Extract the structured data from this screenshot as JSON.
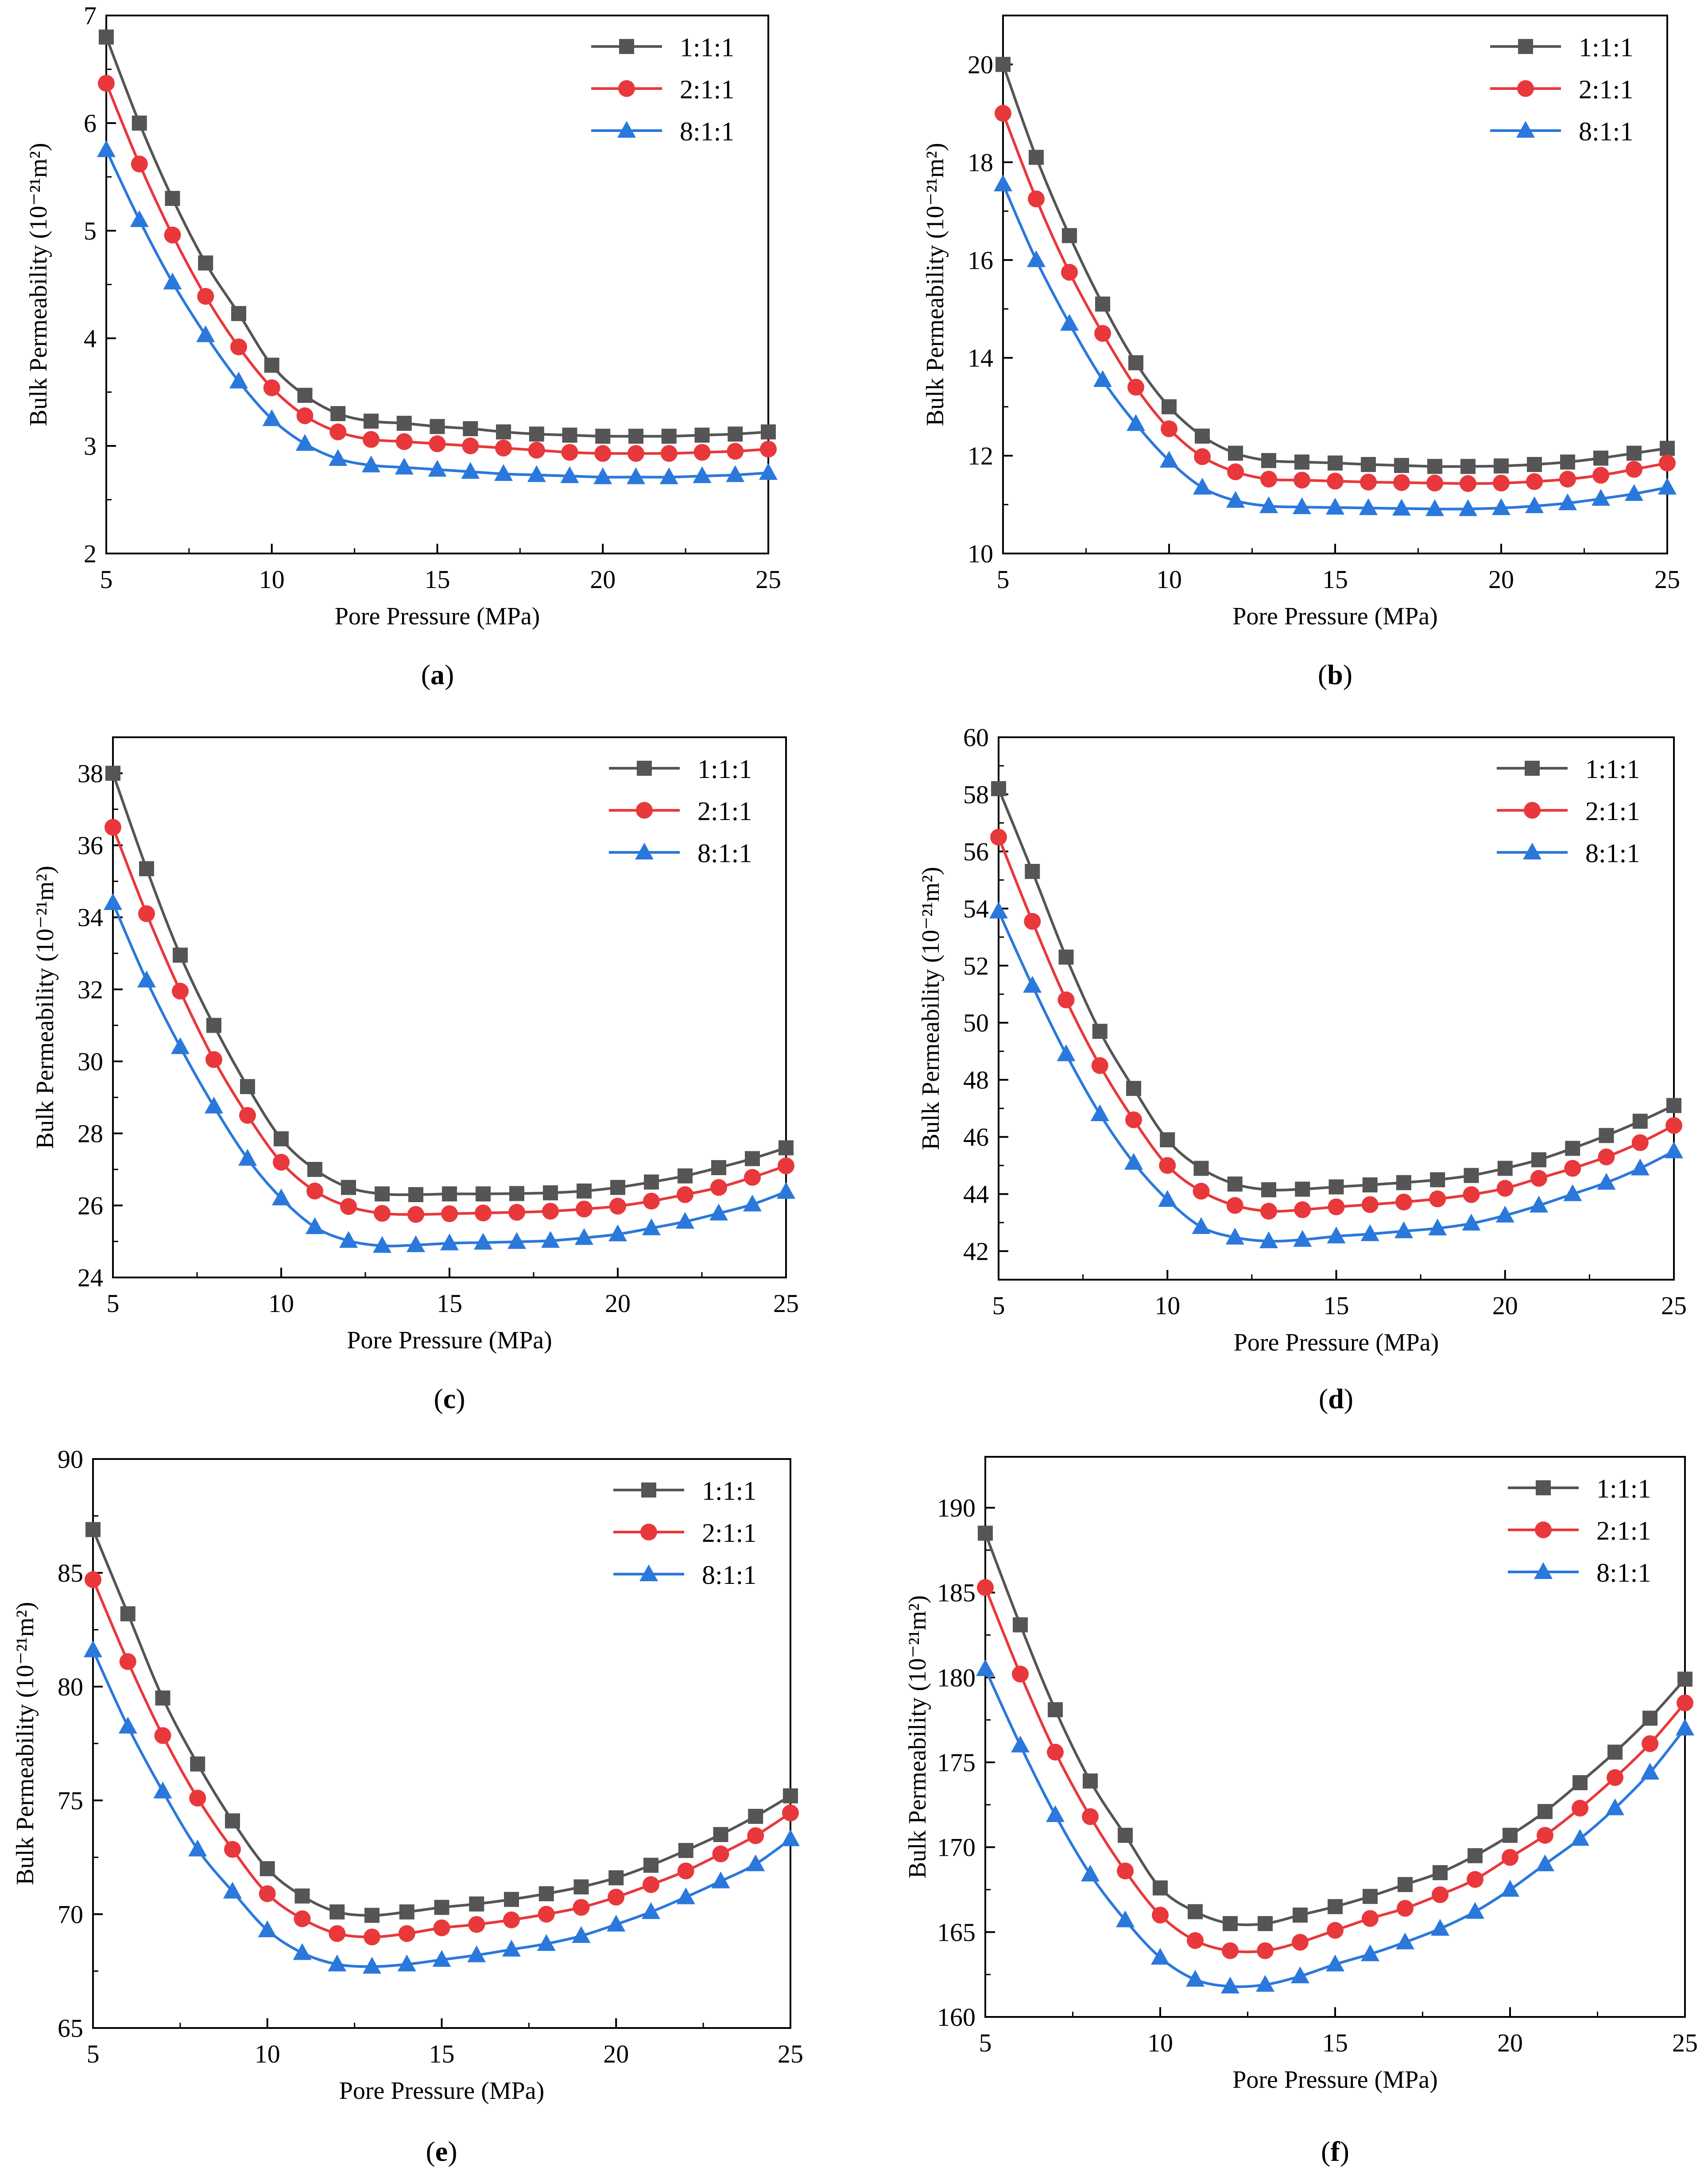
{
  "figure_labels": [
    "a",
    "b",
    "c",
    "d",
    "e",
    "f"
  ],
  "colors": {
    "s1": "#555555",
    "s2": "#e8383b",
    "s3": "#2a78dc"
  },
  "chart_data": [
    {
      "id": "a",
      "type": "line",
      "label": "a",
      "xlabel": "Pore Pressure (MPa)",
      "ylabel": "Bulk Permeability (10⁻²¹m²)",
      "xlim": [
        5,
        25
      ],
      "ylim": [
        2,
        7
      ],
      "xticks": [
        5,
        10,
        15,
        20,
        25
      ],
      "yticks": [
        2,
        3,
        4,
        5,
        6,
        7
      ],
      "x": [
        5,
        6,
        7,
        8,
        9,
        10,
        11,
        12,
        13,
        14,
        15,
        16,
        17,
        18,
        19,
        20,
        21,
        22,
        23,
        24,
        25
      ],
      "series": [
        {
          "name": "1:1:1",
          "values": [
            6.8,
            6.0,
            5.3,
            4.7,
            4.23,
            3.75,
            3.47,
            3.3,
            3.23,
            3.21,
            3.18,
            3.16,
            3.13,
            3.11,
            3.1,
            3.09,
            3.09,
            3.09,
            3.1,
            3.11,
            3.13
          ]
        },
        {
          "name": "2:1:1",
          "values": [
            6.37,
            5.62,
            4.96,
            4.39,
            3.92,
            3.54,
            3.28,
            3.13,
            3.06,
            3.04,
            3.02,
            3.0,
            2.98,
            2.96,
            2.94,
            2.93,
            2.93,
            2.93,
            2.94,
            2.95,
            2.97
          ]
        },
        {
          "name": "8:1:1",
          "values": [
            5.75,
            5.1,
            4.52,
            4.03,
            3.6,
            3.25,
            3.02,
            2.88,
            2.82,
            2.8,
            2.78,
            2.76,
            2.74,
            2.73,
            2.72,
            2.71,
            2.71,
            2.71,
            2.72,
            2.73,
            2.75
          ]
        }
      ]
    },
    {
      "id": "b",
      "type": "line",
      "label": "b",
      "xlabel": "Pore Pressure (MPa)",
      "ylabel": "Bulk Permeability (10⁻²¹m²)",
      "xlim": [
        5,
        25
      ],
      "ylim": [
        10,
        21
      ],
      "xticks": [
        5,
        10,
        15,
        20,
        25
      ],
      "yticks": [
        10,
        12,
        14,
        16,
        18,
        20
      ],
      "x": [
        5,
        6,
        7,
        8,
        9,
        10,
        11,
        12,
        13,
        14,
        15,
        16,
        17,
        18,
        19,
        20,
        21,
        22,
        23,
        24,
        25
      ],
      "series": [
        {
          "name": "1:1:1",
          "values": [
            20.0,
            18.1,
            16.5,
            15.1,
            13.9,
            13.0,
            12.4,
            12.05,
            11.9,
            11.87,
            11.85,
            11.82,
            11.8,
            11.78,
            11.78,
            11.79,
            11.82,
            11.87,
            11.95,
            12.05,
            12.15
          ]
        },
        {
          "name": "2:1:1",
          "values": [
            19.0,
            17.25,
            15.75,
            14.5,
            13.4,
            12.55,
            11.98,
            11.67,
            11.52,
            11.5,
            11.48,
            11.46,
            11.45,
            11.44,
            11.43,
            11.44,
            11.47,
            11.52,
            11.6,
            11.72,
            11.85
          ]
        },
        {
          "name": "8:1:1",
          "values": [
            17.55,
            16.0,
            14.7,
            13.55,
            12.65,
            11.9,
            11.35,
            11.08,
            10.97,
            10.95,
            10.94,
            10.93,
            10.92,
            10.91,
            10.91,
            10.93,
            10.97,
            11.03,
            11.12,
            11.22,
            11.35
          ]
        }
      ]
    },
    {
      "id": "c",
      "type": "line",
      "label": "c",
      "xlabel": "Pore Pressure (MPa)",
      "ylabel": "Bulk Permeability (10⁻²¹m²)",
      "xlim": [
        5,
        25
      ],
      "ylim": [
        24,
        39
      ],
      "xticks": [
        5,
        10,
        15,
        20,
        25
      ],
      "yticks": [
        24,
        26,
        28,
        30,
        32,
        34,
        36,
        38
      ],
      "x": [
        5,
        6,
        7,
        8,
        9,
        10,
        11,
        12,
        13,
        14,
        15,
        16,
        17,
        18,
        19,
        20,
        21,
        22,
        23,
        24,
        25
      ],
      "series": [
        {
          "name": "1:1:1",
          "values": [
            38.0,
            35.35,
            32.95,
            31.0,
            29.3,
            27.85,
            27.0,
            26.5,
            26.32,
            26.3,
            26.32,
            26.32,
            26.33,
            26.35,
            26.4,
            26.5,
            26.65,
            26.82,
            27.05,
            27.3,
            27.6
          ]
        },
        {
          "name": "2:1:1",
          "values": [
            36.5,
            34.1,
            31.95,
            30.05,
            28.5,
            27.2,
            26.4,
            25.97,
            25.78,
            25.75,
            25.77,
            25.79,
            25.81,
            25.84,
            25.9,
            25.98,
            26.12,
            26.3,
            26.5,
            26.78,
            27.1
          ]
        },
        {
          "name": "8:1:1",
          "values": [
            34.4,
            32.25,
            30.4,
            28.75,
            27.3,
            26.2,
            25.4,
            25.02,
            24.88,
            24.9,
            24.95,
            24.97,
            24.99,
            25.02,
            25.1,
            25.2,
            25.37,
            25.55,
            25.78,
            26.03,
            26.38
          ]
        }
      ]
    },
    {
      "id": "d",
      "type": "line",
      "label": "d",
      "xlabel": "Pore Pressure (MPa)",
      "ylabel": "Bulk Permeability (10⁻²¹m²)",
      "xlim": [
        5,
        25
      ],
      "ylim": [
        41,
        60
      ],
      "xticks": [
        5,
        10,
        15,
        20,
        25
      ],
      "yticks": [
        42,
        44,
        46,
        48,
        50,
        52,
        54,
        56,
        58,
        60
      ],
      "x": [
        5,
        6,
        7,
        8,
        9,
        10,
        11,
        12,
        13,
        14,
        15,
        16,
        17,
        18,
        19,
        20,
        21,
        22,
        23,
        24,
        25
      ],
      "series": [
        {
          "name": "1:1:1",
          "values": [
            58.2,
            55.3,
            52.3,
            49.7,
            47.7,
            45.9,
            44.9,
            44.35,
            44.15,
            44.17,
            44.25,
            44.32,
            44.4,
            44.5,
            44.65,
            44.9,
            45.2,
            45.6,
            46.05,
            46.55,
            47.1
          ]
        },
        {
          "name": "2:1:1",
          "values": [
            56.5,
            53.55,
            50.8,
            48.5,
            46.6,
            45.0,
            44.1,
            43.6,
            43.4,
            43.45,
            43.55,
            43.63,
            43.72,
            43.83,
            43.98,
            44.2,
            44.55,
            44.9,
            45.3,
            45.8,
            46.4
          ]
        },
        {
          "name": "8:1:1",
          "values": [
            53.9,
            51.3,
            48.9,
            46.8,
            45.1,
            43.8,
            42.85,
            42.48,
            42.35,
            42.4,
            42.52,
            42.6,
            42.7,
            42.8,
            42.97,
            43.25,
            43.6,
            44.0,
            44.4,
            44.9,
            45.5
          ]
        }
      ]
    },
    {
      "id": "e",
      "type": "line",
      "label": "e",
      "xlabel": "Pore Pressure (MPa)",
      "ylabel": "Bulk Permeability (10⁻²¹m²)",
      "xlim": [
        5,
        25
      ],
      "ylim": [
        65,
        90
      ],
      "xticks": [
        5,
        10,
        15,
        20,
        25
      ],
      "yticks": [
        65,
        70,
        75,
        80,
        85,
        90
      ],
      "x": [
        5,
        6,
        7,
        8,
        9,
        10,
        11,
        12,
        13,
        14,
        15,
        16,
        17,
        18,
        19,
        20,
        21,
        22,
        23,
        24,
        25
      ],
      "series": [
        {
          "name": "1:1:1",
          "values": [
            86.9,
            83.2,
            79.5,
            76.6,
            74.1,
            72.0,
            70.8,
            70.1,
            69.95,
            70.1,
            70.3,
            70.45,
            70.65,
            70.9,
            71.2,
            71.6,
            72.15,
            72.8,
            73.5,
            74.3,
            75.2
          ]
        },
        {
          "name": "2:1:1",
          "values": [
            84.7,
            81.1,
            77.85,
            75.1,
            72.85,
            70.9,
            69.8,
            69.15,
            69.0,
            69.15,
            69.4,
            69.55,
            69.75,
            70.0,
            70.3,
            70.75,
            71.3,
            71.9,
            72.65,
            73.45,
            74.45
          ]
        },
        {
          "name": "8:1:1",
          "values": [
            81.6,
            78.25,
            75.4,
            72.85,
            71.0,
            69.3,
            68.3,
            67.8,
            67.7,
            67.8,
            68.0,
            68.2,
            68.45,
            68.7,
            69.05,
            69.55,
            70.1,
            70.75,
            71.45,
            72.2,
            73.3
          ]
        }
      ]
    },
    {
      "id": "f",
      "type": "line",
      "label": "f",
      "xlabel": "Pore Pressure (MPa)",
      "ylabel": "Bulk Permeability (10⁻²¹m²)",
      "xlim": [
        5,
        25
      ],
      "ylim": [
        160,
        193
      ],
      "xticks": [
        5,
        10,
        15,
        20,
        25
      ],
      "yticks": [
        160,
        165,
        170,
        175,
        180,
        185,
        190
      ],
      "x": [
        5,
        6,
        7,
        8,
        9,
        10,
        11,
        12,
        13,
        14,
        15,
        16,
        17,
        18,
        19,
        20,
        21,
        22,
        23,
        24,
        25
      ],
      "series": [
        {
          "name": "1:1:1",
          "values": [
            188.5,
            183.1,
            178.1,
            173.9,
            170.7,
            167.6,
            166.2,
            165.5,
            165.5,
            166.0,
            166.5,
            167.1,
            167.8,
            168.5,
            169.5,
            170.7,
            172.1,
            173.8,
            175.6,
            177.6,
            179.9
          ]
        },
        {
          "name": "2:1:1",
          "values": [
            185.3,
            180.2,
            175.6,
            171.8,
            168.6,
            166.0,
            164.5,
            163.9,
            163.9,
            164.4,
            165.1,
            165.8,
            166.4,
            167.2,
            168.1,
            169.4,
            170.7,
            172.3,
            174.1,
            176.1,
            178.5
          ]
        },
        {
          "name": "8:1:1",
          "values": [
            180.5,
            176.0,
            171.9,
            168.4,
            165.7,
            163.5,
            162.2,
            161.8,
            161.9,
            162.4,
            163.1,
            163.7,
            164.4,
            165.2,
            166.2,
            167.5,
            169.0,
            170.5,
            172.3,
            174.4,
            177.0
          ]
        }
      ]
    }
  ]
}
